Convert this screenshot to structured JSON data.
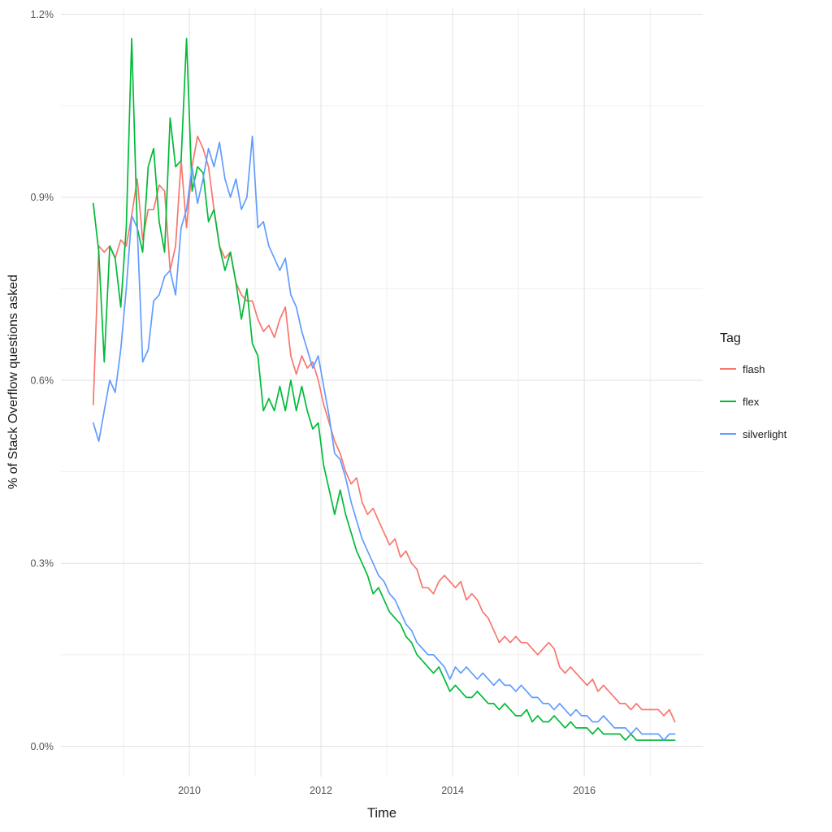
{
  "figure": {
    "background": "#ffffff",
    "grid_major_color": "#e2e2e2",
    "grid_minor_color": "#efefef",
    "axis_text_color": "#555555",
    "axis_title_color": "#1a1a1a"
  },
  "axes": {
    "x_title": "Time",
    "y_title": "% of Stack Overflow questions asked",
    "x_ticks": [
      2010,
      2012,
      2014,
      2016
    ],
    "x_tick_labels": [
      "2010",
      "2012",
      "2014",
      "2016"
    ],
    "x_minor_ticks": [
      2009,
      2011,
      2013,
      2015,
      2017
    ],
    "y_ticks": [
      0,
      0.3,
      0.6,
      0.9,
      1.2
    ],
    "y_tick_labels": [
      "0.0%",
      "0.3%",
      "0.6%",
      "0.9%",
      "1.2%"
    ],
    "y_minor_ticks": [
      0.15,
      0.45,
      0.75,
      1.05
    ],
    "xlim": [
      2008.05,
      2017.8
    ],
    "ylim": [
      -0.05,
      1.21
    ]
  },
  "legend": {
    "title": "Tag",
    "position": "right"
  },
  "chart_data": {
    "type": "line",
    "title": "",
    "xlabel": "Time",
    "ylabel": "% of Stack Overflow questions asked",
    "grid": true,
    "legend_position": "right",
    "x_unit": "monthly, values are % of Stack Overflow questions asked",
    "x_start": {
      "year": 2008,
      "month": 7
    },
    "x_interval_months": 1,
    "series": [
      {
        "name": "flash",
        "color": "#F8766D",
        "values": [
          0.56,
          0.82,
          0.81,
          0.82,
          0.8,
          0.83,
          0.82,
          0.87,
          0.93,
          0.83,
          0.88,
          0.88,
          0.92,
          0.91,
          0.78,
          0.82,
          0.96,
          0.85,
          0.95,
          1.0,
          0.98,
          0.95,
          0.88,
          0.82,
          0.8,
          0.81,
          0.76,
          0.74,
          0.73,
          0.73,
          0.7,
          0.68,
          0.69,
          0.67,
          0.7,
          0.72,
          0.64,
          0.61,
          0.64,
          0.62,
          0.63,
          0.6,
          0.56,
          0.53,
          0.5,
          0.48,
          0.45,
          0.43,
          0.44,
          0.4,
          0.38,
          0.39,
          0.37,
          0.35,
          0.33,
          0.34,
          0.31,
          0.32,
          0.3,
          0.29,
          0.26,
          0.26,
          0.25,
          0.27,
          0.28,
          0.27,
          0.26,
          0.27,
          0.24,
          0.25,
          0.24,
          0.22,
          0.21,
          0.19,
          0.17,
          0.18,
          0.17,
          0.18,
          0.17,
          0.17,
          0.16,
          0.15,
          0.16,
          0.17,
          0.16,
          0.13,
          0.12,
          0.13,
          0.12,
          0.11,
          0.1,
          0.11,
          0.09,
          0.1,
          0.09,
          0.08,
          0.07,
          0.07,
          0.06,
          0.07,
          0.06,
          0.06,
          0.06,
          0.06,
          0.05,
          0.06,
          0.04
        ]
      },
      {
        "name": "flex",
        "color": "#00BA38",
        "values": [
          0.89,
          0.81,
          0.63,
          0.82,
          0.8,
          0.72,
          0.85,
          1.16,
          0.85,
          0.81,
          0.95,
          0.98,
          0.86,
          0.81,
          1.03,
          0.95,
          0.96,
          1.16,
          0.91,
          0.95,
          0.94,
          0.86,
          0.88,
          0.82,
          0.78,
          0.81,
          0.76,
          0.7,
          0.75,
          0.66,
          0.64,
          0.55,
          0.57,
          0.55,
          0.59,
          0.55,
          0.6,
          0.55,
          0.59,
          0.55,
          0.52,
          0.53,
          0.46,
          0.42,
          0.38,
          0.42,
          0.38,
          0.35,
          0.32,
          0.3,
          0.28,
          0.25,
          0.26,
          0.24,
          0.22,
          0.21,
          0.2,
          0.18,
          0.17,
          0.15,
          0.14,
          0.13,
          0.12,
          0.13,
          0.11,
          0.09,
          0.1,
          0.09,
          0.08,
          0.08,
          0.09,
          0.08,
          0.07,
          0.07,
          0.06,
          0.07,
          0.06,
          0.05,
          0.05,
          0.06,
          0.04,
          0.05,
          0.04,
          0.04,
          0.05,
          0.04,
          0.03,
          0.04,
          0.03,
          0.03,
          0.03,
          0.02,
          0.03,
          0.02,
          0.02,
          0.02,
          0.02,
          0.01,
          0.02,
          0.01,
          0.01,
          0.01,
          0.01,
          0.01,
          0.01,
          0.01,
          0.01
        ]
      },
      {
        "name": "silverlight",
        "color": "#619CFF",
        "values": [
          0.53,
          0.5,
          0.55,
          0.6,
          0.58,
          0.65,
          0.75,
          0.87,
          0.85,
          0.63,
          0.65,
          0.73,
          0.74,
          0.77,
          0.78,
          0.74,
          0.85,
          0.88,
          0.95,
          0.89,
          0.93,
          0.98,
          0.95,
          0.99,
          0.93,
          0.9,
          0.93,
          0.88,
          0.9,
          1.0,
          0.85,
          0.86,
          0.82,
          0.8,
          0.78,
          0.8,
          0.74,
          0.72,
          0.68,
          0.65,
          0.62,
          0.64,
          0.59,
          0.54,
          0.48,
          0.47,
          0.44,
          0.4,
          0.37,
          0.34,
          0.32,
          0.3,
          0.28,
          0.27,
          0.25,
          0.24,
          0.22,
          0.2,
          0.19,
          0.17,
          0.16,
          0.15,
          0.15,
          0.14,
          0.13,
          0.11,
          0.13,
          0.12,
          0.13,
          0.12,
          0.11,
          0.12,
          0.11,
          0.1,
          0.11,
          0.1,
          0.1,
          0.09,
          0.1,
          0.09,
          0.08,
          0.08,
          0.07,
          0.07,
          0.06,
          0.07,
          0.06,
          0.05,
          0.06,
          0.05,
          0.05,
          0.04,
          0.04,
          0.05,
          0.04,
          0.03,
          0.03,
          0.03,
          0.02,
          0.03,
          0.02,
          0.02,
          0.02,
          0.02,
          0.01,
          0.02,
          0.02
        ]
      }
    ]
  }
}
